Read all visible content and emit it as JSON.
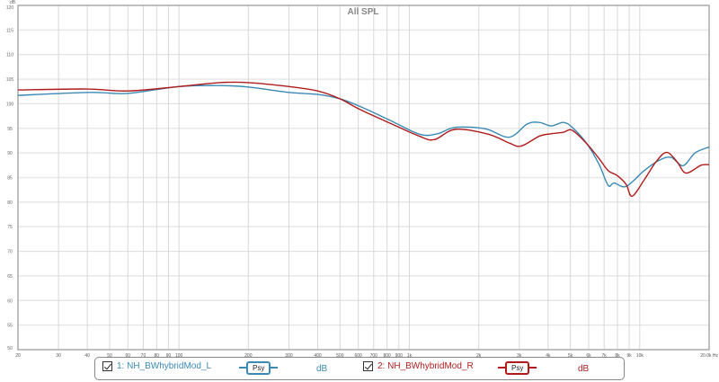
{
  "chart_data": {
    "type": "line",
    "title": "All SPL",
    "ylabel": "dB",
    "xscale": "log",
    "xlim": [
      20,
      20000
    ],
    "ylim": [
      50,
      120
    ],
    "grid": true,
    "legend_position": "bottom",
    "x_tick_labels": [
      {
        "f": 20,
        "t": "20"
      },
      {
        "f": 30,
        "t": "30"
      },
      {
        "f": 40,
        "t": "40"
      },
      {
        "f": 50,
        "t": "50"
      },
      {
        "f": 60,
        "t": "60"
      },
      {
        "f": 70,
        "t": "70"
      },
      {
        "f": 80,
        "t": "80"
      },
      {
        "f": 90,
        "t": "90"
      },
      {
        "f": 100,
        "t": "100"
      },
      {
        "f": 200,
        "t": "200"
      },
      {
        "f": 300,
        "t": "300"
      },
      {
        "f": 400,
        "t": "400"
      },
      {
        "f": 500,
        "t": "500"
      },
      {
        "f": 600,
        "t": "600"
      },
      {
        "f": 700,
        "t": "700"
      },
      {
        "f": 800,
        "t": "800"
      },
      {
        "f": 900,
        "t": "900"
      },
      {
        "f": 1000,
        "t": "1k"
      },
      {
        "f": 2000,
        "t": "2k"
      },
      {
        "f": 3000,
        "t": "3k"
      },
      {
        "f": 4000,
        "t": "4k"
      },
      {
        "f": 5000,
        "t": "5k"
      },
      {
        "f": 6000,
        "t": "6k"
      },
      {
        "f": 7000,
        "t": "7k"
      },
      {
        "f": 8000,
        "t": "8k"
      },
      {
        "f": 9000,
        "t": "9k"
      },
      {
        "f": 10000,
        "t": "10k"
      },
      {
        "f": 20000,
        "t": "20.0k Hz"
      }
    ],
    "y_ticks": [
      50,
      55,
      60,
      65,
      70,
      75,
      80,
      85,
      90,
      95,
      100,
      105,
      110,
      115,
      120
    ],
    "series": [
      {
        "name": "1: NH_BWhybridMod_L",
        "color": "#3a8ab5",
        "points": [
          [
            20,
            101.7
          ],
          [
            41,
            102.3
          ],
          [
            60,
            102.1
          ],
          [
            100,
            103.5
          ],
          [
            150,
            103.7
          ],
          [
            200,
            103.4
          ],
          [
            300,
            102.3
          ],
          [
            400,
            101.9
          ],
          [
            500,
            101.0
          ],
          [
            607,
            99.5
          ],
          [
            819,
            96.7
          ],
          [
            1106,
            93.8
          ],
          [
            1324,
            93.9
          ],
          [
            1584,
            95.2
          ],
          [
            2137,
            94.9
          ],
          [
            2715,
            93.2
          ],
          [
            3250,
            95.9
          ],
          [
            3662,
            96.2
          ],
          [
            4127,
            95.5
          ],
          [
            4655,
            96.2
          ],
          [
            5090,
            95.2
          ],
          [
            5910,
            91.8
          ],
          [
            6670,
            87.6
          ],
          [
            7295,
            83.4
          ],
          [
            7740,
            83.9
          ],
          [
            8730,
            83.2
          ],
          [
            10450,
            86.4
          ],
          [
            12130,
            88.5
          ],
          [
            13680,
            89.1
          ],
          [
            15420,
            87.4
          ],
          [
            17370,
            90.0
          ],
          [
            20000,
            91.2
          ]
        ]
      },
      {
        "name": "2: NH_BWhybridMod_R",
        "color": "#b01c1c",
        "points": [
          [
            20,
            102.8
          ],
          [
            40,
            103.0
          ],
          [
            60,
            102.6
          ],
          [
            100,
            103.5
          ],
          [
            150,
            104.3
          ],
          [
            200,
            104.3
          ],
          [
            300,
            103.5
          ],
          [
            400,
            102.6
          ],
          [
            500,
            101.0
          ],
          [
            607,
            98.9
          ],
          [
            819,
            96.1
          ],
          [
            1106,
            93.4
          ],
          [
            1284,
            92.7
          ],
          [
            1584,
            94.8
          ],
          [
            2200,
            93.8
          ],
          [
            2715,
            92.0
          ],
          [
            3060,
            91.4
          ],
          [
            3662,
            93.4
          ],
          [
            4127,
            93.9
          ],
          [
            4655,
            94.2
          ],
          [
            5090,
            94.6
          ],
          [
            5910,
            91.8
          ],
          [
            6670,
            88.8
          ],
          [
            7295,
            86.4
          ],
          [
            7980,
            85.4
          ],
          [
            8730,
            83.6
          ],
          [
            9260,
            81.2
          ],
          [
            10450,
            84.5
          ],
          [
            11770,
            88.2
          ],
          [
            13080,
            90.1
          ],
          [
            14520,
            88.2
          ],
          [
            15880,
            85.9
          ],
          [
            18440,
            87.5
          ],
          [
            20000,
            87.6
          ]
        ]
      }
    ]
  },
  "legend": {
    "items": [
      {
        "label": "1: NH_BWhybridMod_L",
        "psy": "Psy",
        "unit": "dB",
        "color": "#3a8ab5",
        "checked": true
      },
      {
        "label": "2: NH_BWhybridMod_R",
        "psy": "Psy",
        "unit": "dB",
        "color": "#b01c1c",
        "checked": true
      }
    ]
  }
}
